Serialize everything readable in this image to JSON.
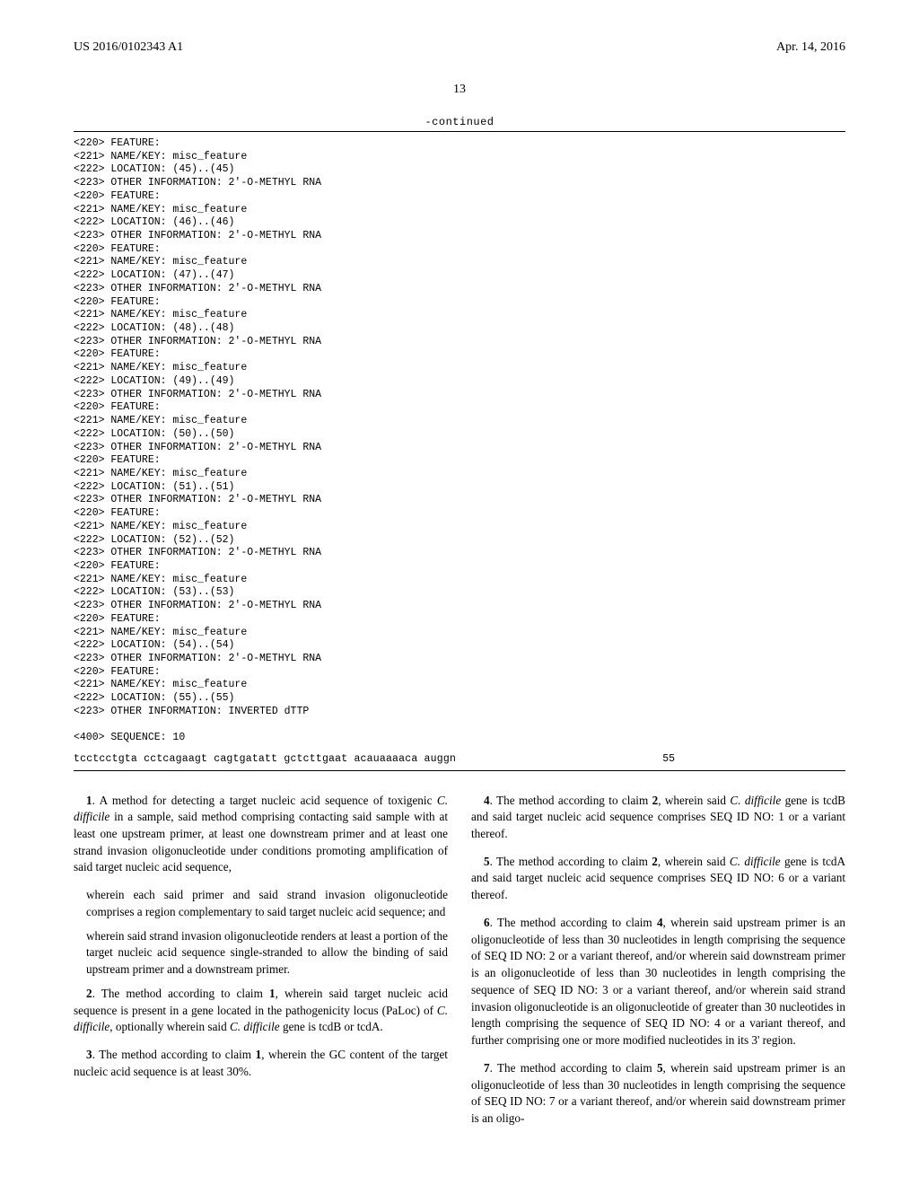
{
  "header": {
    "pub_number": "US 2016/0102343 A1",
    "pub_date": "Apr. 14, 2016"
  },
  "page_number": "13",
  "continued_label": "-continued",
  "sequence_listing": {
    "features": [
      {
        "loc": "(45)..(45)",
        "info": "2'-O-METHYL RNA"
      },
      {
        "loc": "(46)..(46)",
        "info": "2'-O-METHYL RNA"
      },
      {
        "loc": "(47)..(47)",
        "info": "2'-O-METHYL RNA"
      },
      {
        "loc": "(48)..(48)",
        "info": "2'-O-METHYL RNA"
      },
      {
        "loc": "(49)..(49)",
        "info": "2'-O-METHYL RNA"
      },
      {
        "loc": "(50)..(50)",
        "info": "2'-O-METHYL RNA"
      },
      {
        "loc": "(51)..(51)",
        "info": "2'-O-METHYL RNA"
      },
      {
        "loc": "(52)..(52)",
        "info": "2'-O-METHYL RNA"
      },
      {
        "loc": "(53)..(53)",
        "info": "2'-O-METHYL RNA"
      },
      {
        "loc": "(54)..(54)",
        "info": "2'-O-METHYL RNA"
      }
    ],
    "last_feature": {
      "loc": "(55)..(55)",
      "info": "INVERTED dTTP"
    },
    "sequence_number_line": "<400> SEQUENCE: 10",
    "sequence_string": "tcctcctgta cctcagaagt cagtgatatt gctcttgaat acauaaaaca auggn",
    "sequence_length": "55",
    "tags": {
      "feature": "<220> FEATURE:",
      "namekey": "<221> NAME/KEY: misc_feature",
      "location_prefix": "<222> LOCATION: ",
      "other_prefix": "<223> OTHER INFORMATION: "
    }
  },
  "claims": {
    "c1": {
      "num": "1",
      "text_a": ". A method for detecting a target nucleic acid sequence of toxigenic ",
      "ital1": "C. difficile",
      "text_b": " in a sample, said method comprising contacting said sample with at least one upstream primer, at least one downstream primer and at least one strand invasion oligonucleotide under conditions promoting amplification of said target nucleic acid sequence,",
      "sub1": "wherein each said primer and said strand invasion oligonucleotide comprises a region complementary to said target nucleic acid sequence; and",
      "sub2": "wherein said strand invasion oligonucleotide renders at least a portion of the target nucleic acid sequence single-stranded to allow the binding of said upstream primer and a downstream primer."
    },
    "c2": {
      "num": "2",
      "text_a": ". The method according to claim ",
      "ref": "1",
      "text_b": ", wherein said target nucleic acid sequence is present in a gene located in the pathogenicity locus (PaLoc) of ",
      "ital1": "C. difficile",
      "text_c": ", optionally wherein said ",
      "ital2": "C. difficile",
      "text_d": " gene is tcdB or tcdA."
    },
    "c3": {
      "num": "3",
      "text_a": ". The method according to claim ",
      "ref": "1",
      "text_b": ", wherein the GC content of the target nucleic acid sequence is at least 30%."
    },
    "c4": {
      "num": "4",
      "text_a": ". The method according to claim ",
      "ref": "2",
      "text_b": ", wherein said ",
      "ital1": "C. difficile",
      "text_c": " gene is tcdB and said target nucleic acid sequence comprises SEQ ID NO: 1 or a variant thereof."
    },
    "c5": {
      "num": "5",
      "text_a": ". The method according to claim ",
      "ref": "2",
      "text_b": ", wherein said ",
      "ital1": "C. difficile",
      "text_c": " gene is tcdA and said target nucleic acid sequence comprises SEQ ID NO: 6 or a variant thereof."
    },
    "c6": {
      "num": "6",
      "text_a": ". The method according to claim ",
      "ref": "4",
      "text_b": ", wherein said upstream primer is an oligonucleotide of less than 30 nucleotides in length comprising the sequence of SEQ ID NO: 2 or a variant thereof, and/or wherein said downstream primer is an oligonucleotide of less than 30 nucleotides in length comprising the sequence of SEQ ID NO: 3 or a variant thereof, and/or wherein said strand invasion oligonucleotide is an oligonucleotide of greater than 30 nucleotides in length comprising the sequence of SEQ ID NO: 4 or a variant thereof, and further comprising one or more modified nucleotides in its 3' region."
    },
    "c7": {
      "num": "7",
      "text_a": ". The method according to claim ",
      "ref": "5",
      "text_b": ", wherein said upstream primer is an oligonucleotide of less than 30 nucleotides in length comprising the sequence of SEQ ID NO: 7 or a variant thereof, and/or wherein said downstream primer is an oligo-"
    }
  }
}
